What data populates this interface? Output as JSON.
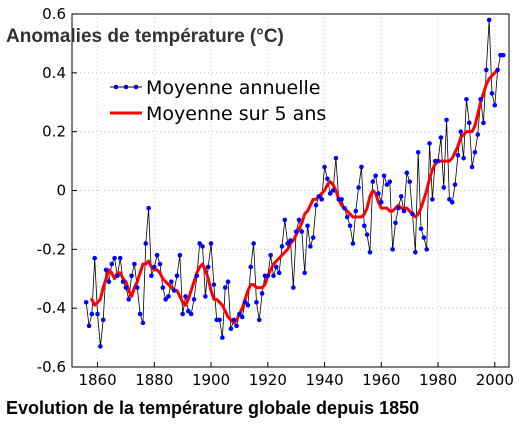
{
  "chart_data": {
    "type": "line",
    "title": "Anomalies de température (°C)",
    "caption": "Evolution de la température globale depuis 1850",
    "xlim": [
      1851,
      2005
    ],
    "ylim": [
      -0.6,
      0.6
    ],
    "x_ticks": [
      1860,
      1880,
      1900,
      1920,
      1940,
      1960,
      1980,
      2000
    ],
    "y_ticks": [
      -0.6,
      -0.4,
      -0.2,
      0,
      0.2,
      0.4,
      0.6
    ],
    "x_tick_labels": [
      "1860",
      "1880",
      "1900",
      "1920",
      "1940",
      "1960",
      "1980",
      "2000"
    ],
    "y_tick_labels": [
      "-0.6",
      "-0.4",
      "-0.2",
      "0",
      "0.2",
      "0.4",
      "0.6"
    ],
    "legend": {
      "position": "top-left"
    },
    "series": [
      {
        "name": "Moyenne annuelle",
        "color": "#0000ff",
        "marker": "dot",
        "line_color": "#000000",
        "x": [
          1856,
          1857,
          1858,
          1859,
          1860,
          1861,
          1862,
          1863,
          1864,
          1865,
          1866,
          1867,
          1868,
          1869,
          1870,
          1871,
          1872,
          1873,
          1874,
          1875,
          1876,
          1877,
          1878,
          1879,
          1880,
          1881,
          1882,
          1883,
          1884,
          1885,
          1886,
          1887,
          1888,
          1889,
          1890,
          1891,
          1892,
          1893,
          1894,
          1895,
          1896,
          1897,
          1898,
          1899,
          1900,
          1901,
          1902,
          1903,
          1904,
          1905,
          1906,
          1907,
          1908,
          1909,
          1910,
          1911,
          1912,
          1913,
          1914,
          1915,
          1916,
          1917,
          1918,
          1919,
          1920,
          1921,
          1922,
          1923,
          1924,
          1925,
          1926,
          1927,
          1928,
          1929,
          1930,
          1931,
          1932,
          1933,
          1934,
          1935,
          1936,
          1937,
          1938,
          1939,
          1940,
          1941,
          1942,
          1943,
          1944,
          1945,
          1946,
          1947,
          1948,
          1949,
          1950,
          1951,
          1952,
          1953,
          1954,
          1955,
          1956,
          1957,
          1958,
          1959,
          1960,
          1961,
          1962,
          1963,
          1964,
          1965,
          1966,
          1967,
          1968,
          1969,
          1970,
          1971,
          1972,
          1973,
          1974,
          1975,
          1976,
          1977,
          1978,
          1979,
          1980,
          1981,
          1982,
          1983,
          1984,
          1985,
          1986,
          1987,
          1988,
          1989,
          1990,
          1991,
          1992,
          1993,
          1994,
          1995,
          1996,
          1997,
          1998,
          1999,
          2000,
          2001,
          2002,
          2003
        ],
        "values": [
          -0.38,
          -0.46,
          -0.42,
          -0.23,
          -0.42,
          -0.53,
          -0.44,
          -0.27,
          -0.31,
          -0.25,
          -0.23,
          -0.29,
          -0.23,
          -0.31,
          -0.33,
          -0.37,
          -0.29,
          -0.25,
          -0.33,
          -0.42,
          -0.45,
          -0.18,
          -0.06,
          -0.29,
          -0.26,
          -0.22,
          -0.25,
          -0.33,
          -0.37,
          -0.36,
          -0.31,
          -0.34,
          -0.29,
          -0.22,
          -0.42,
          -0.36,
          -0.41,
          -0.42,
          -0.37,
          -0.29,
          -0.18,
          -0.19,
          -0.36,
          -0.26,
          -0.18,
          -0.32,
          -0.44,
          -0.44,
          -0.5,
          -0.33,
          -0.31,
          -0.47,
          -0.44,
          -0.46,
          -0.42,
          -0.43,
          -0.38,
          -0.39,
          -0.26,
          -0.18,
          -0.38,
          -0.44,
          -0.35,
          -0.29,
          -0.29,
          -0.22,
          -0.29,
          -0.26,
          -0.28,
          -0.19,
          -0.1,
          -0.18,
          -0.17,
          -0.33,
          -0.14,
          -0.1,
          -0.14,
          -0.28,
          -0.12,
          -0.19,
          -0.16,
          -0.05,
          -0.02,
          -0.03,
          0.08,
          0.04,
          -0.01,
          0.0,
          0.11,
          -0.03,
          -0.03,
          -0.06,
          -0.09,
          -0.12,
          -0.18,
          -0.07,
          0.01,
          0.08,
          -0.12,
          -0.15,
          -0.21,
          0.03,
          0.05,
          -0.01,
          -0.04,
          0.05,
          0.02,
          0.03,
          -0.2,
          -0.11,
          -0.06,
          -0.02,
          -0.07,
          0.06,
          0.03,
          -0.08,
          -0.21,
          0.13,
          -0.13,
          -0.16,
          -0.2,
          0.16,
          -0.03,
          0.1,
          0.1,
          0.18,
          0.01,
          0.24,
          -0.03,
          -0.04,
          0.02,
          0.12,
          0.2,
          0.11,
          0.31,
          0.23,
          0.08,
          0.13,
          0.19,
          0.31,
          0.23,
          0.41,
          0.58,
          0.33,
          0.29,
          0.41,
          0.46,
          0.46
        ],
        "value_labels": []
      },
      {
        "name": "Moyenne sur 5 ans",
        "color": "#ff0000",
        "x": [
          1858,
          1859,
          1860,
          1861,
          1862,
          1863,
          1864,
          1865,
          1866,
          1867,
          1868,
          1869,
          1870,
          1871,
          1872,
          1873,
          1874,
          1875,
          1876,
          1877,
          1878,
          1879,
          1880,
          1881,
          1882,
          1883,
          1884,
          1885,
          1886,
          1887,
          1888,
          1889,
          1890,
          1891,
          1892,
          1893,
          1894,
          1895,
          1896,
          1897,
          1898,
          1899,
          1900,
          1901,
          1902,
          1903,
          1904,
          1905,
          1906,
          1907,
          1908,
          1909,
          1910,
          1911,
          1912,
          1913,
          1914,
          1915,
          1916,
          1917,
          1918,
          1919,
          1920,
          1921,
          1922,
          1923,
          1924,
          1925,
          1926,
          1927,
          1928,
          1929,
          1930,
          1931,
          1932,
          1933,
          1934,
          1935,
          1936,
          1937,
          1938,
          1939,
          1940,
          1941,
          1942,
          1943,
          1944,
          1945,
          1946,
          1947,
          1948,
          1949,
          1950,
          1951,
          1952,
          1953,
          1954,
          1955,
          1956,
          1957,
          1958,
          1959,
          1960,
          1961,
          1962,
          1963,
          1964,
          1965,
          1966,
          1967,
          1968,
          1969,
          1970,
          1971,
          1972,
          1973,
          1974,
          1975,
          1976,
          1977,
          1978,
          1979,
          1980,
          1981,
          1982,
          1983,
          1984,
          1985,
          1986,
          1987,
          1988,
          1989,
          1990,
          1991,
          1992,
          1993,
          1994,
          1995,
          1996,
          1997,
          1998,
          1999,
          2000,
          2001
        ],
        "values": [
          -0.37,
          -0.39,
          -0.38,
          -0.37,
          -0.33,
          -0.3,
          -0.27,
          -0.28,
          -0.3,
          -0.28,
          -0.28,
          -0.3,
          -0.31,
          -0.34,
          -0.36,
          -0.33,
          -0.31,
          -0.28,
          -0.25,
          -0.25,
          -0.24,
          -0.26,
          -0.27,
          -0.27,
          -0.28,
          -0.3,
          -0.31,
          -0.32,
          -0.33,
          -0.34,
          -0.34,
          -0.36,
          -0.38,
          -0.39,
          -0.37,
          -0.34,
          -0.31,
          -0.28,
          -0.26,
          -0.25,
          -0.27,
          -0.3,
          -0.34,
          -0.37,
          -0.37,
          -0.38,
          -0.39,
          -0.41,
          -0.43,
          -0.44,
          -0.45,
          -0.44,
          -0.42,
          -0.4,
          -0.37,
          -0.34,
          -0.32,
          -0.32,
          -0.33,
          -0.33,
          -0.33,
          -0.32,
          -0.29,
          -0.27,
          -0.25,
          -0.24,
          -0.23,
          -0.22,
          -0.21,
          -0.2,
          -0.18,
          -0.17,
          -0.15,
          -0.13,
          -0.11,
          -0.08,
          -0.07,
          -0.05,
          -0.03,
          -0.03,
          -0.02,
          -0.01,
          0.0,
          0.02,
          0.03,
          0.02,
          0.0,
          -0.03,
          -0.05,
          -0.06,
          -0.07,
          -0.08,
          -0.09,
          -0.09,
          -0.09,
          -0.09,
          -0.08,
          -0.06,
          -0.02,
          0.0,
          -0.01,
          -0.04,
          -0.06,
          -0.06,
          -0.06,
          -0.07,
          -0.07,
          -0.06,
          -0.05,
          -0.06,
          -0.06,
          -0.06,
          -0.07,
          -0.08,
          -0.09,
          -0.08,
          -0.06,
          -0.03,
          0.0,
          0.04,
          0.07,
          0.09,
          0.1,
          0.1,
          0.1,
          0.1,
          0.1,
          0.11,
          0.13,
          0.15,
          0.18,
          0.19,
          0.2,
          0.2,
          0.2,
          0.22,
          0.26,
          0.3,
          0.33,
          0.36,
          0.38,
          0.39,
          0.4,
          0.41
        ]
      }
    ]
  }
}
